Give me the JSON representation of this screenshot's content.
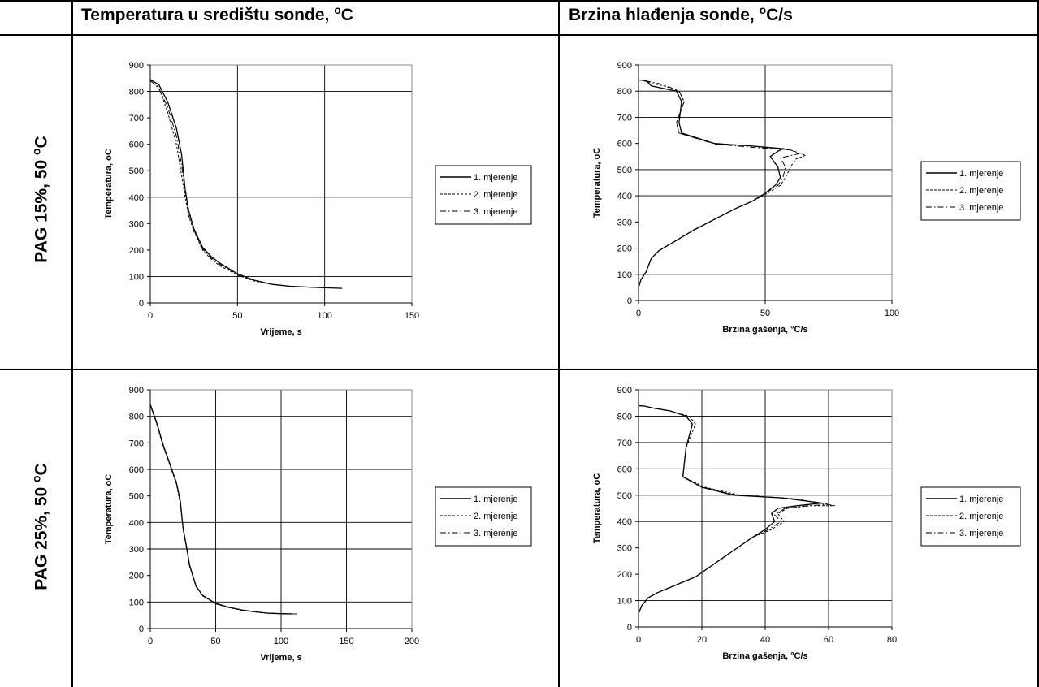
{
  "table": {
    "col1_header": "Temperatura u središtu sonde,",
    "col1_header_unit_sup": "o",
    "col1_header_unit": "C",
    "col2_header": "Brzina hlađenja sonde,",
    "col2_header_unit_sup": "o",
    "col2_header_unit": "C/s",
    "row1_label": "PAG 15%, 50",
    "row1_label_sup": "o",
    "row1_label_unit": "C",
    "row2_label": "PAG 25%, 50",
    "row2_label_sup": "o",
    "row2_label_unit": "C"
  },
  "chart_data": [
    {
      "type": "line",
      "xlabel": "Vrijeme, s",
      "ylabel": "Temperatura, oC",
      "xlim": [
        0,
        150
      ],
      "xticks": [
        0,
        50,
        100,
        150
      ],
      "ylim": [
        0,
        900
      ],
      "yticks": [
        0,
        100,
        200,
        300,
        400,
        500,
        600,
        700,
        800,
        900
      ],
      "ygrid": [
        100,
        400,
        800
      ],
      "xgrid": [
        50,
        100
      ],
      "legend_position": "right",
      "series": [
        {
          "name": "1. mjerenje",
          "dash": "solid",
          "x": [
            0,
            5,
            10,
            15,
            18,
            20,
            22,
            25,
            30,
            35,
            40,
            50,
            60,
            70,
            80,
            90,
            100,
            110
          ],
          "y": [
            845,
            825,
            760,
            660,
            560,
            430,
            350,
            280,
            210,
            175,
            150,
            110,
            85,
            70,
            63,
            60,
            57,
            55
          ]
        },
        {
          "name": "2. mjerenje",
          "dash": "dash",
          "x": [
            0,
            5,
            10,
            15,
            18,
            20,
            22,
            25,
            30,
            35,
            40,
            50,
            60,
            70,
            80,
            90,
            100
          ],
          "y": [
            840,
            815,
            720,
            600,
            480,
            400,
            330,
            270,
            200,
            165,
            140,
            105,
            82,
            70,
            63,
            60,
            57
          ]
        },
        {
          "name": "3. mjerenje",
          "dash": "dashdot",
          "x": [
            0,
            5,
            10,
            15,
            18,
            20,
            22,
            25,
            30,
            35,
            40,
            50,
            60,
            70,
            80,
            90,
            100
          ],
          "y": [
            842,
            810,
            740,
            630,
            520,
            420,
            345,
            275,
            205,
            170,
            145,
            108,
            84,
            70,
            63,
            60,
            57
          ]
        }
      ]
    },
    {
      "type": "line",
      "xlabel": "Brzina gašenja, °C/s",
      "ylabel": "Temperatura, oC",
      "xlim": [
        0,
        100
      ],
      "xticks": [
        0,
        50,
        100
      ],
      "ylim": [
        0,
        900
      ],
      "yticks": [
        0,
        100,
        200,
        300,
        400,
        500,
        600,
        700,
        800,
        900
      ],
      "ygrid": [
        100,
        400,
        500,
        700,
        800
      ],
      "xgrid": [
        50
      ],
      "legend_position": "right",
      "series": [
        {
          "name": "1. mjerenje",
          "dash": "solid",
          "x": [
            0,
            1,
            3,
            5,
            8,
            15,
            22,
            30,
            38,
            45,
            50,
            54,
            56,
            55,
            52,
            55,
            57,
            45,
            30,
            17,
            16,
            17,
            15,
            10,
            5,
            3,
            0
          ],
          "y": [
            50,
            80,
            110,
            160,
            190,
            230,
            270,
            310,
            350,
            380,
            410,
            440,
            470,
            510,
            550,
            570,
            580,
            590,
            600,
            640,
            680,
            760,
            800,
            810,
            820,
            840,
            843
          ]
        },
        {
          "name": "2. mjerenje",
          "dash": "dash",
          "x": [
            0,
            1,
            3,
            5,
            8,
            15,
            22,
            30,
            38,
            45,
            51,
            56,
            58,
            60,
            62,
            66,
            60,
            45,
            30,
            16,
            15,
            18,
            16,
            10,
            5,
            2,
            0
          ],
          "y": [
            50,
            80,
            110,
            160,
            190,
            230,
            270,
            310,
            350,
            380,
            410,
            440,
            470,
            510,
            540,
            555,
            575,
            590,
            600,
            640,
            680,
            760,
            800,
            820,
            830,
            840,
            843
          ]
        },
        {
          "name": "3. mjerenje",
          "dash": "dashdot",
          "x": [
            0,
            1,
            3,
            5,
            8,
            15,
            22,
            30,
            38,
            45,
            50,
            55,
            57,
            58,
            56,
            63,
            60,
            45,
            30,
            16,
            15,
            18,
            16,
            10,
            5,
            2,
            0
          ],
          "y": [
            50,
            80,
            110,
            160,
            190,
            230,
            270,
            310,
            350,
            380,
            410,
            440,
            470,
            510,
            545,
            560,
            575,
            585,
            598,
            640,
            680,
            760,
            800,
            825,
            835,
            840,
            843
          ]
        }
      ]
    },
    {
      "type": "line",
      "xlabel": "Vrijeme, s",
      "ylabel": "Temperatura, oC",
      "xlim": [
        0,
        200
      ],
      "xticks": [
        0,
        50,
        100,
        150,
        200
      ],
      "ylim": [
        0,
        900
      ],
      "yticks": [
        0,
        100,
        200,
        300,
        400,
        500,
        600,
        700,
        800,
        900
      ],
      "ygrid": [
        100,
        300,
        400,
        600,
        800
      ],
      "xgrid": [
        50,
        100,
        150
      ],
      "legend_position": "right",
      "series": [
        {
          "name": "1. mjerenje",
          "dash": "solid",
          "x": [
            0,
            5,
            10,
            15,
            20,
            23,
            25,
            28,
            30,
            35,
            40,
            50,
            60,
            70,
            80,
            90,
            100,
            108
          ],
          "y": [
            845,
            775,
            690,
            620,
            550,
            480,
            380,
            300,
            240,
            160,
            125,
            95,
            80,
            70,
            63,
            58,
            56,
            55
          ]
        },
        {
          "name": "2. mjerenje",
          "dash": "dash",
          "x": [
            0,
            5,
            10,
            15,
            20,
            23,
            25,
            28,
            30,
            35,
            40,
            50,
            60,
            70,
            80,
            90,
            100,
            110
          ],
          "y": [
            843,
            770,
            685,
            615,
            545,
            470,
            375,
            295,
            235,
            158,
            123,
            93,
            79,
            69,
            62,
            58,
            56,
            55
          ]
        },
        {
          "name": "3. mjerenje",
          "dash": "dashdot",
          "x": [
            0,
            5,
            10,
            15,
            20,
            23,
            25,
            28,
            30,
            35,
            40,
            50,
            60,
            70,
            80,
            90,
            100,
            112
          ],
          "y": [
            844,
            772,
            688,
            618,
            548,
            475,
            378,
            298,
            238,
            160,
            124,
            94,
            80,
            70,
            63,
            58,
            56,
            55
          ]
        }
      ]
    },
    {
      "type": "line",
      "xlabel": "Brzina gašenja, °C/s",
      "ylabel": "Temperatura, oC",
      "xlim": [
        0,
        80
      ],
      "xticks": [
        0,
        20,
        40,
        60,
        80
      ],
      "ylim": [
        0,
        900
      ],
      "yticks": [
        0,
        100,
        200,
        300,
        400,
        500,
        600,
        700,
        800,
        900
      ],
      "ygrid": [
        100,
        400,
        500,
        600,
        700,
        800
      ],
      "xgrid": [
        20,
        40,
        60
      ],
      "legend_position": "right",
      "series": [
        {
          "name": "1. mjerenje",
          "dash": "solid",
          "x": [
            0,
            1,
            3,
            6,
            12,
            18,
            24,
            30,
            36,
            40,
            43,
            42,
            44,
            50,
            58,
            45,
            30,
            20,
            14,
            15,
            17,
            15,
            10,
            5,
            2,
            0
          ],
          "y": [
            50,
            80,
            110,
            130,
            160,
            190,
            240,
            290,
            340,
            370,
            400,
            430,
            450,
            460,
            470,
            490,
            500,
            530,
            570,
            680,
            770,
            800,
            820,
            830,
            838,
            840
          ]
        },
        {
          "name": "2. mjerenje",
          "dash": "dash",
          "x": [
            0,
            1,
            3,
            6,
            12,
            18,
            24,
            30,
            36,
            42,
            46,
            44,
            47,
            54,
            62,
            50,
            32,
            21,
            14,
            15,
            18,
            16,
            10,
            5,
            2,
            0
          ],
          "y": [
            50,
            80,
            110,
            130,
            160,
            190,
            240,
            290,
            340,
            370,
            400,
            430,
            450,
            460,
            460,
            485,
            500,
            530,
            570,
            680,
            770,
            800,
            820,
            830,
            838,
            840
          ]
        },
        {
          "name": "3. mjerenje",
          "dash": "dashdot",
          "x": [
            0,
            1,
            3,
            6,
            12,
            18,
            24,
            30,
            36,
            41,
            45,
            43,
            46,
            52,
            60,
            48,
            31,
            20,
            14,
            15,
            17,
            15,
            10,
            5,
            2,
            0
          ],
          "y": [
            50,
            80,
            110,
            130,
            160,
            190,
            240,
            290,
            340,
            370,
            400,
            425,
            448,
            458,
            465,
            488,
            500,
            530,
            570,
            680,
            770,
            800,
            820,
            830,
            838,
            840
          ]
        }
      ]
    }
  ]
}
